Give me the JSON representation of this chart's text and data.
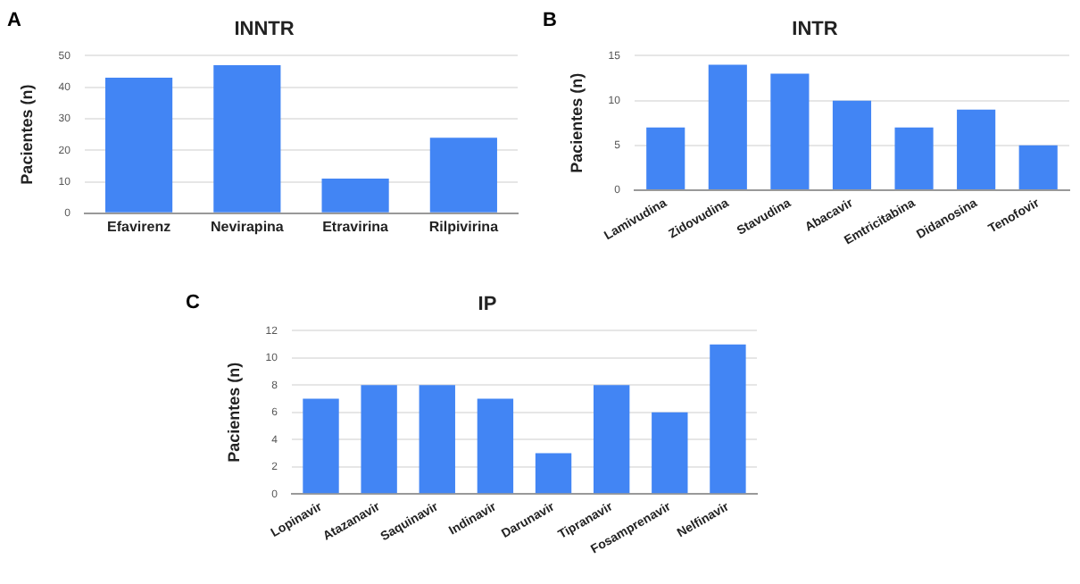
{
  "chart_data": [
    {
      "type": "bar",
      "title": "INNTR",
      "ylabel": "Pacientes (n)",
      "annotations": [
        "A"
      ],
      "categories": [
        "Efavirenz",
        "Nevirapina",
        "Etravirina",
        "Rilpivirina"
      ],
      "values": [
        43,
        47,
        11,
        24
      ],
      "color": "#4285f4",
      "ylim": [
        0,
        50
      ],
      "yticks": [
        0,
        10,
        20,
        30,
        40,
        50
      ],
      "grid": "y",
      "legend": false
    },
    {
      "type": "bar",
      "title": "INTR",
      "ylabel": "Pacientes (n)",
      "annotations": [
        "B"
      ],
      "categories": [
        "Lamivudina",
        "Zidovudina",
        "Stavudina",
        "Abacavir",
        "Emtricitabina",
        "Didanosina",
        "Tenofovir"
      ],
      "values": [
        7,
        14,
        13,
        10,
        7,
        9,
        5
      ],
      "color": "#4285f4",
      "ylim": [
        0,
        15
      ],
      "yticks": [
        0,
        5,
        10,
        15
      ],
      "grid": "y",
      "legend": false
    },
    {
      "type": "bar",
      "title": "IP",
      "ylabel": "Pacientes (n)",
      "annotations": [
        "C"
      ],
      "categories": [
        "Lopinavir",
        "Atazanavir",
        "Saquinavir",
        "Indinavir",
        "Darunavir",
        "Tipranavir",
        "Fosamprenavir",
        "Nelfinavir"
      ],
      "values": [
        7,
        8,
        8,
        7,
        3,
        8,
        6,
        11
      ],
      "color": "#4285f4",
      "ylim": [
        0,
        12
      ],
      "yticks": [
        0,
        2,
        4,
        6,
        8,
        10,
        12
      ],
      "grid": "y",
      "legend": false
    }
  ]
}
